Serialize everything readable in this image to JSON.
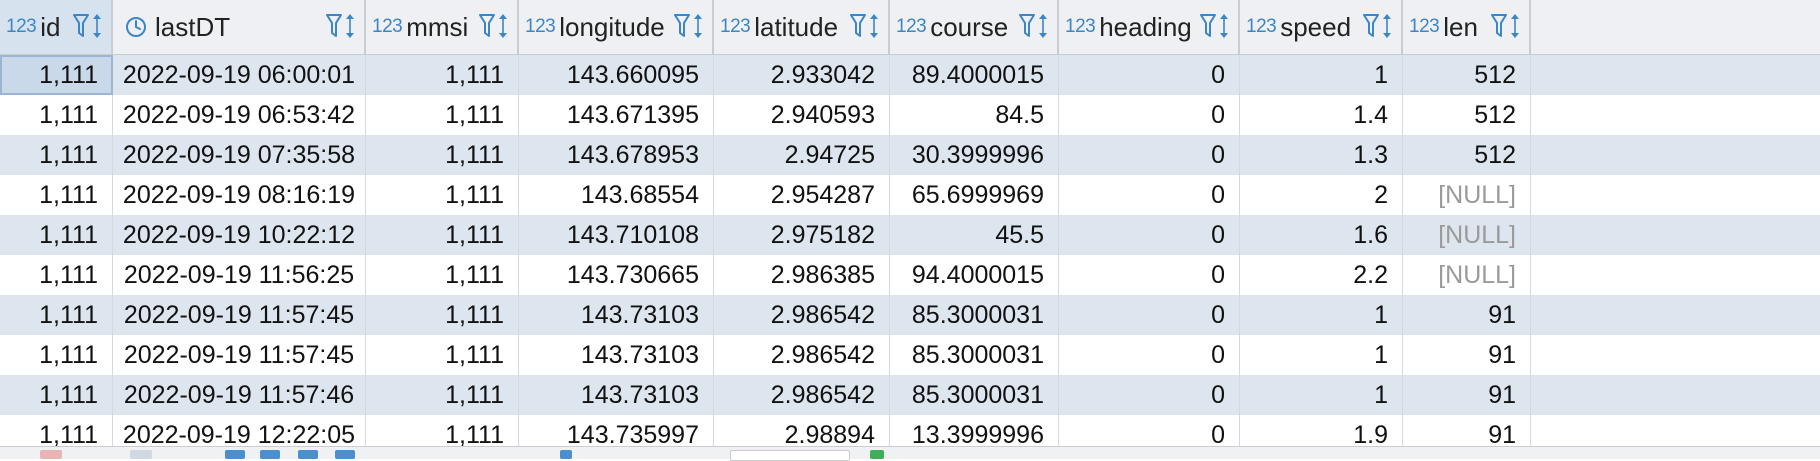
{
  "columns": [
    {
      "key": "id",
      "type": "123",
      "name": "id"
    },
    {
      "key": "lastDT",
      "type": "clock",
      "name": "lastDT"
    },
    {
      "key": "mmsi",
      "type": "123",
      "name": "mmsi"
    },
    {
      "key": "longitude",
      "type": "123",
      "name": "longitude"
    },
    {
      "key": "latitude",
      "type": "123",
      "name": "latitude"
    },
    {
      "key": "course",
      "type": "123",
      "name": "course"
    },
    {
      "key": "heading",
      "type": "123",
      "name": "heading"
    },
    {
      "key": "speed",
      "type": "123",
      "name": "speed"
    },
    {
      "key": "len",
      "type": "123",
      "name": "len"
    }
  ],
  "rows": [
    [
      "1,111",
      "2022-09-19 06:00:01",
      "1,111",
      "143.660095",
      "2.933042",
      "89.4000015",
      "0",
      "1",
      "512"
    ],
    [
      "1,111",
      "2022-09-19 06:53:42",
      "1,111",
      "143.671395",
      "2.940593",
      "84.5",
      "0",
      "1.4",
      "512"
    ],
    [
      "1,111",
      "2022-09-19 07:35:58",
      "1,111",
      "143.678953",
      "2.94725",
      "30.3999996",
      "0",
      "1.3",
      "512"
    ],
    [
      "1,111",
      "2022-09-19 08:16:19",
      "1,111",
      "143.68554",
      "2.954287",
      "65.6999969",
      "0",
      "2",
      "[NULL]"
    ],
    [
      "1,111",
      "2022-09-19 10:22:12",
      "1,111",
      "143.710108",
      "2.975182",
      "45.5",
      "0",
      "1.6",
      "[NULL]"
    ],
    [
      "1,111",
      "2022-09-19 11:56:25",
      "1,111",
      "143.730665",
      "2.986385",
      "94.4000015",
      "0",
      "2.2",
      "[NULL]"
    ],
    [
      "1,111",
      "2022-09-19 11:57:45",
      "1,111",
      "143.73103",
      "2.986542",
      "85.3000031",
      "0",
      "1",
      "91"
    ],
    [
      "1,111",
      "2022-09-19 11:57:45",
      "1,111",
      "143.73103",
      "2.986542",
      "85.3000031",
      "0",
      "1",
      "91"
    ],
    [
      "1,111",
      "2022-09-19 11:57:46",
      "1,111",
      "143.73103",
      "2.986542",
      "85.3000031",
      "0",
      "1",
      "91"
    ],
    [
      "1,111",
      "2022-09-19 12:22:05",
      "1,111",
      "143.735997",
      "2.98894",
      "13.3999996",
      "0",
      "1.9",
      "91"
    ]
  ],
  "colors": {
    "type_badge": "#3d86c6",
    "row_alt": "#dde6ef",
    "null_text": "#9a9a9a"
  },
  "icons": {
    "filter": "filter-icon",
    "sort": "sort-icon",
    "clock": "clock-icon"
  }
}
